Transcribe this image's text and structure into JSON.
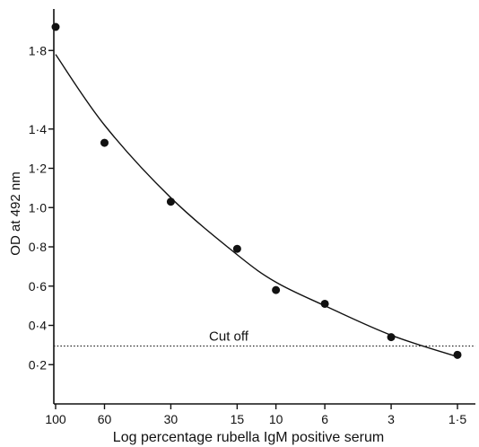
{
  "chart_data": {
    "type": "scatter",
    "title": "",
    "xlabel": "Log percentage rubella IgM positive serum",
    "ylabel": "OD at 492 nm",
    "x_scale": "log",
    "x_reversed": true,
    "xlim": [
      1.5,
      100
    ],
    "ylim": [
      0,
      2.0
    ],
    "x_ticks": [
      100,
      60,
      30,
      15,
      10,
      6,
      3,
      1.5
    ],
    "x_tick_labels": [
      "100",
      "60",
      "30",
      "15",
      "10",
      "6",
      "3",
      "1·5"
    ],
    "y_ticks": [
      0.2,
      0.4,
      0.6,
      0.8,
      1.0,
      1.2,
      1.4,
      1.8
    ],
    "y_tick_labels": [
      "0·2",
      "0·4",
      "0·6",
      "0·8",
      "1·0",
      "1·2",
      "1·4",
      "1·8"
    ],
    "grid": false,
    "series": [
      {
        "points": [
          {
            "x": 100,
            "y": 1.92
          },
          {
            "x": 60,
            "y": 1.33
          },
          {
            "x": 30,
            "y": 1.03
          },
          {
            "x": 15,
            "y": 0.79
          },
          {
            "x": 10,
            "y": 0.58
          },
          {
            "x": 6,
            "y": 0.51
          },
          {
            "x": 3,
            "y": 0.34
          },
          {
            "x": 1.5,
            "y": 0.25
          }
        ]
      }
    ],
    "fit_curve": [
      {
        "x": 100,
        "y": 1.78
      },
      {
        "x": 60,
        "y": 1.42
      },
      {
        "x": 30,
        "y": 1.05
      },
      {
        "x": 15,
        "y": 0.76
      },
      {
        "x": 10,
        "y": 0.62
      },
      {
        "x": 6,
        "y": 0.5
      },
      {
        "x": 3,
        "y": 0.35
      },
      {
        "x": 1.5,
        "y": 0.24
      }
    ],
    "reference_line": {
      "label": "Cut off",
      "y": 0.295
    }
  }
}
